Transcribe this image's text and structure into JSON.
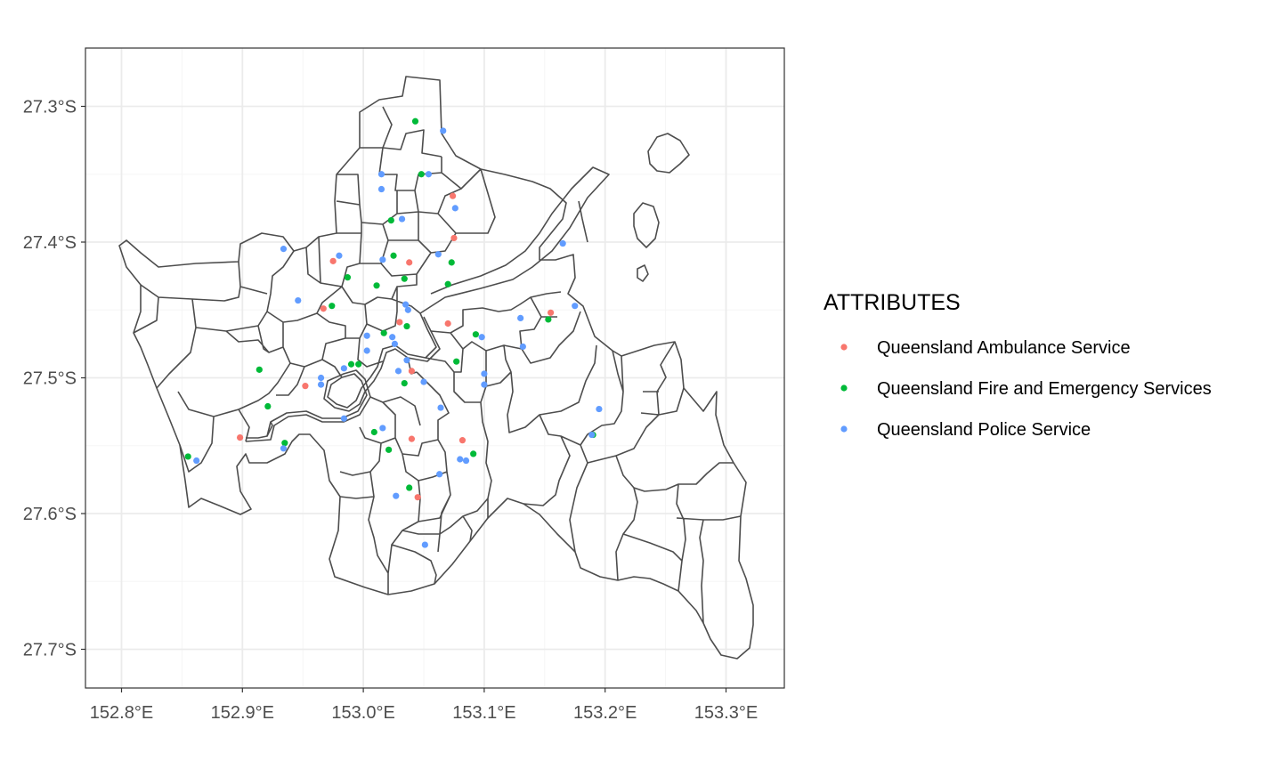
{
  "chart_data": {
    "type": "scatter",
    "title": "",
    "xlabel": "",
    "ylabel": "",
    "xlim": [
      152.77,
      153.35
    ],
    "ylim": [
      -27.728,
      -27.243
    ],
    "grid": true,
    "legend_position": "right",
    "x_ticks": [
      {
        "value": 152.8,
        "label": "152.8°E"
      },
      {
        "value": 152.9,
        "label": "152.9°E"
      },
      {
        "value": 153.0,
        "label": "153.0°E"
      },
      {
        "value": 153.1,
        "label": "153.1°E"
      },
      {
        "value": 153.2,
        "label": "153.2°E"
      },
      {
        "value": 153.3,
        "label": "153.3°E"
      }
    ],
    "y_ticks": [
      {
        "value": -27.3,
        "label": "27.3°S"
      },
      {
        "value": -27.4,
        "label": "27.4°S"
      },
      {
        "value": -27.5,
        "label": "27.5°S"
      },
      {
        "value": -27.6,
        "label": "27.6°S"
      },
      {
        "value": -27.7,
        "label": "27.7°S"
      }
    ],
    "legend": {
      "title": "ATTRIBUTES"
    },
    "series": [
      {
        "name": "Queensland Ambulance Service",
        "color": "#f8766d",
        "points": [
          [
            153.074,
            -27.366
          ],
          [
            153.075,
            -27.397
          ],
          [
            152.975,
            -27.414
          ],
          [
            153.038,
            -27.415
          ],
          [
            152.967,
            -27.449
          ],
          [
            153.03,
            -27.459
          ],
          [
            153.07,
            -27.46
          ],
          [
            153.155,
            -27.452
          ],
          [
            153.04,
            -27.495
          ],
          [
            152.952,
            -27.506
          ],
          [
            152.898,
            -27.544
          ],
          [
            153.04,
            -27.545
          ],
          [
            153.082,
            -27.546
          ],
          [
            153.045,
            -27.588
          ]
        ]
      },
      {
        "name": "Queensland Fire and Emergency Services",
        "color": "#00ba38",
        "points": [
          [
            153.043,
            -27.311
          ],
          [
            153.048,
            -27.35
          ],
          [
            153.023,
            -27.384
          ],
          [
            153.073,
            -27.415
          ],
          [
            153.025,
            -27.41
          ],
          [
            152.987,
            -27.426
          ],
          [
            153.034,
            -27.427
          ],
          [
            153.07,
            -27.431
          ],
          [
            153.011,
            -27.432
          ],
          [
            152.974,
            -27.447
          ],
          [
            153.153,
            -27.457
          ],
          [
            153.017,
            -27.467
          ],
          [
            153.036,
            -27.462
          ],
          [
            153.093,
            -27.468
          ],
          [
            153.077,
            -27.488
          ],
          [
            152.99,
            -27.49
          ],
          [
            152.996,
            -27.49
          ],
          [
            152.914,
            -27.494
          ],
          [
            153.034,
            -27.504
          ],
          [
            152.921,
            -27.521
          ],
          [
            152.935,
            -27.548
          ],
          [
            153.009,
            -27.54
          ],
          [
            153.021,
            -27.553
          ],
          [
            153.091,
            -27.556
          ],
          [
            152.855,
            -27.558
          ],
          [
            153.038,
            -27.581
          ],
          [
            153.19,
            -27.542
          ]
        ]
      },
      {
        "name": "Queensland Police Service",
        "color": "#619cff",
        "points": [
          [
            153.066,
            -27.318
          ],
          [
            153.015,
            -27.35
          ],
          [
            153.054,
            -27.35
          ],
          [
            153.015,
            -27.361
          ],
          [
            153.076,
            -27.375
          ],
          [
            153.032,
            -27.383
          ],
          [
            152.934,
            -27.405
          ],
          [
            153.165,
            -27.401
          ],
          [
            152.98,
            -27.41
          ],
          [
            153.062,
            -27.409
          ],
          [
            153.016,
            -27.413
          ],
          [
            153.035,
            -27.446
          ],
          [
            153.037,
            -27.45
          ],
          [
            152.946,
            -27.443
          ],
          [
            153.13,
            -27.456
          ],
          [
            153.175,
            -27.447
          ],
          [
            153.003,
            -27.469
          ],
          [
            153.024,
            -27.47
          ],
          [
            153.026,
            -27.475
          ],
          [
            153.098,
            -27.47
          ],
          [
            153.132,
            -27.477
          ],
          [
            153.003,
            -27.48
          ],
          [
            153.036,
            -27.487
          ],
          [
            152.984,
            -27.493
          ],
          [
            153.029,
            -27.495
          ],
          [
            152.965,
            -27.5
          ],
          [
            152.965,
            -27.505
          ],
          [
            153.05,
            -27.503
          ],
          [
            153.1,
            -27.497
          ],
          [
            153.1,
            -27.505
          ],
          [
            153.064,
            -27.522
          ],
          [
            153.195,
            -27.523
          ],
          [
            152.984,
            -27.53
          ],
          [
            153.016,
            -27.537
          ],
          [
            153.189,
            -27.542
          ],
          [
            152.934,
            -27.552
          ],
          [
            153.085,
            -27.561
          ],
          [
            153.08,
            -27.56
          ],
          [
            152.862,
            -27.561
          ],
          [
            153.063,
            -27.571
          ],
          [
            153.027,
            -27.587
          ],
          [
            153.051,
            -27.623
          ]
        ]
      }
    ]
  }
}
